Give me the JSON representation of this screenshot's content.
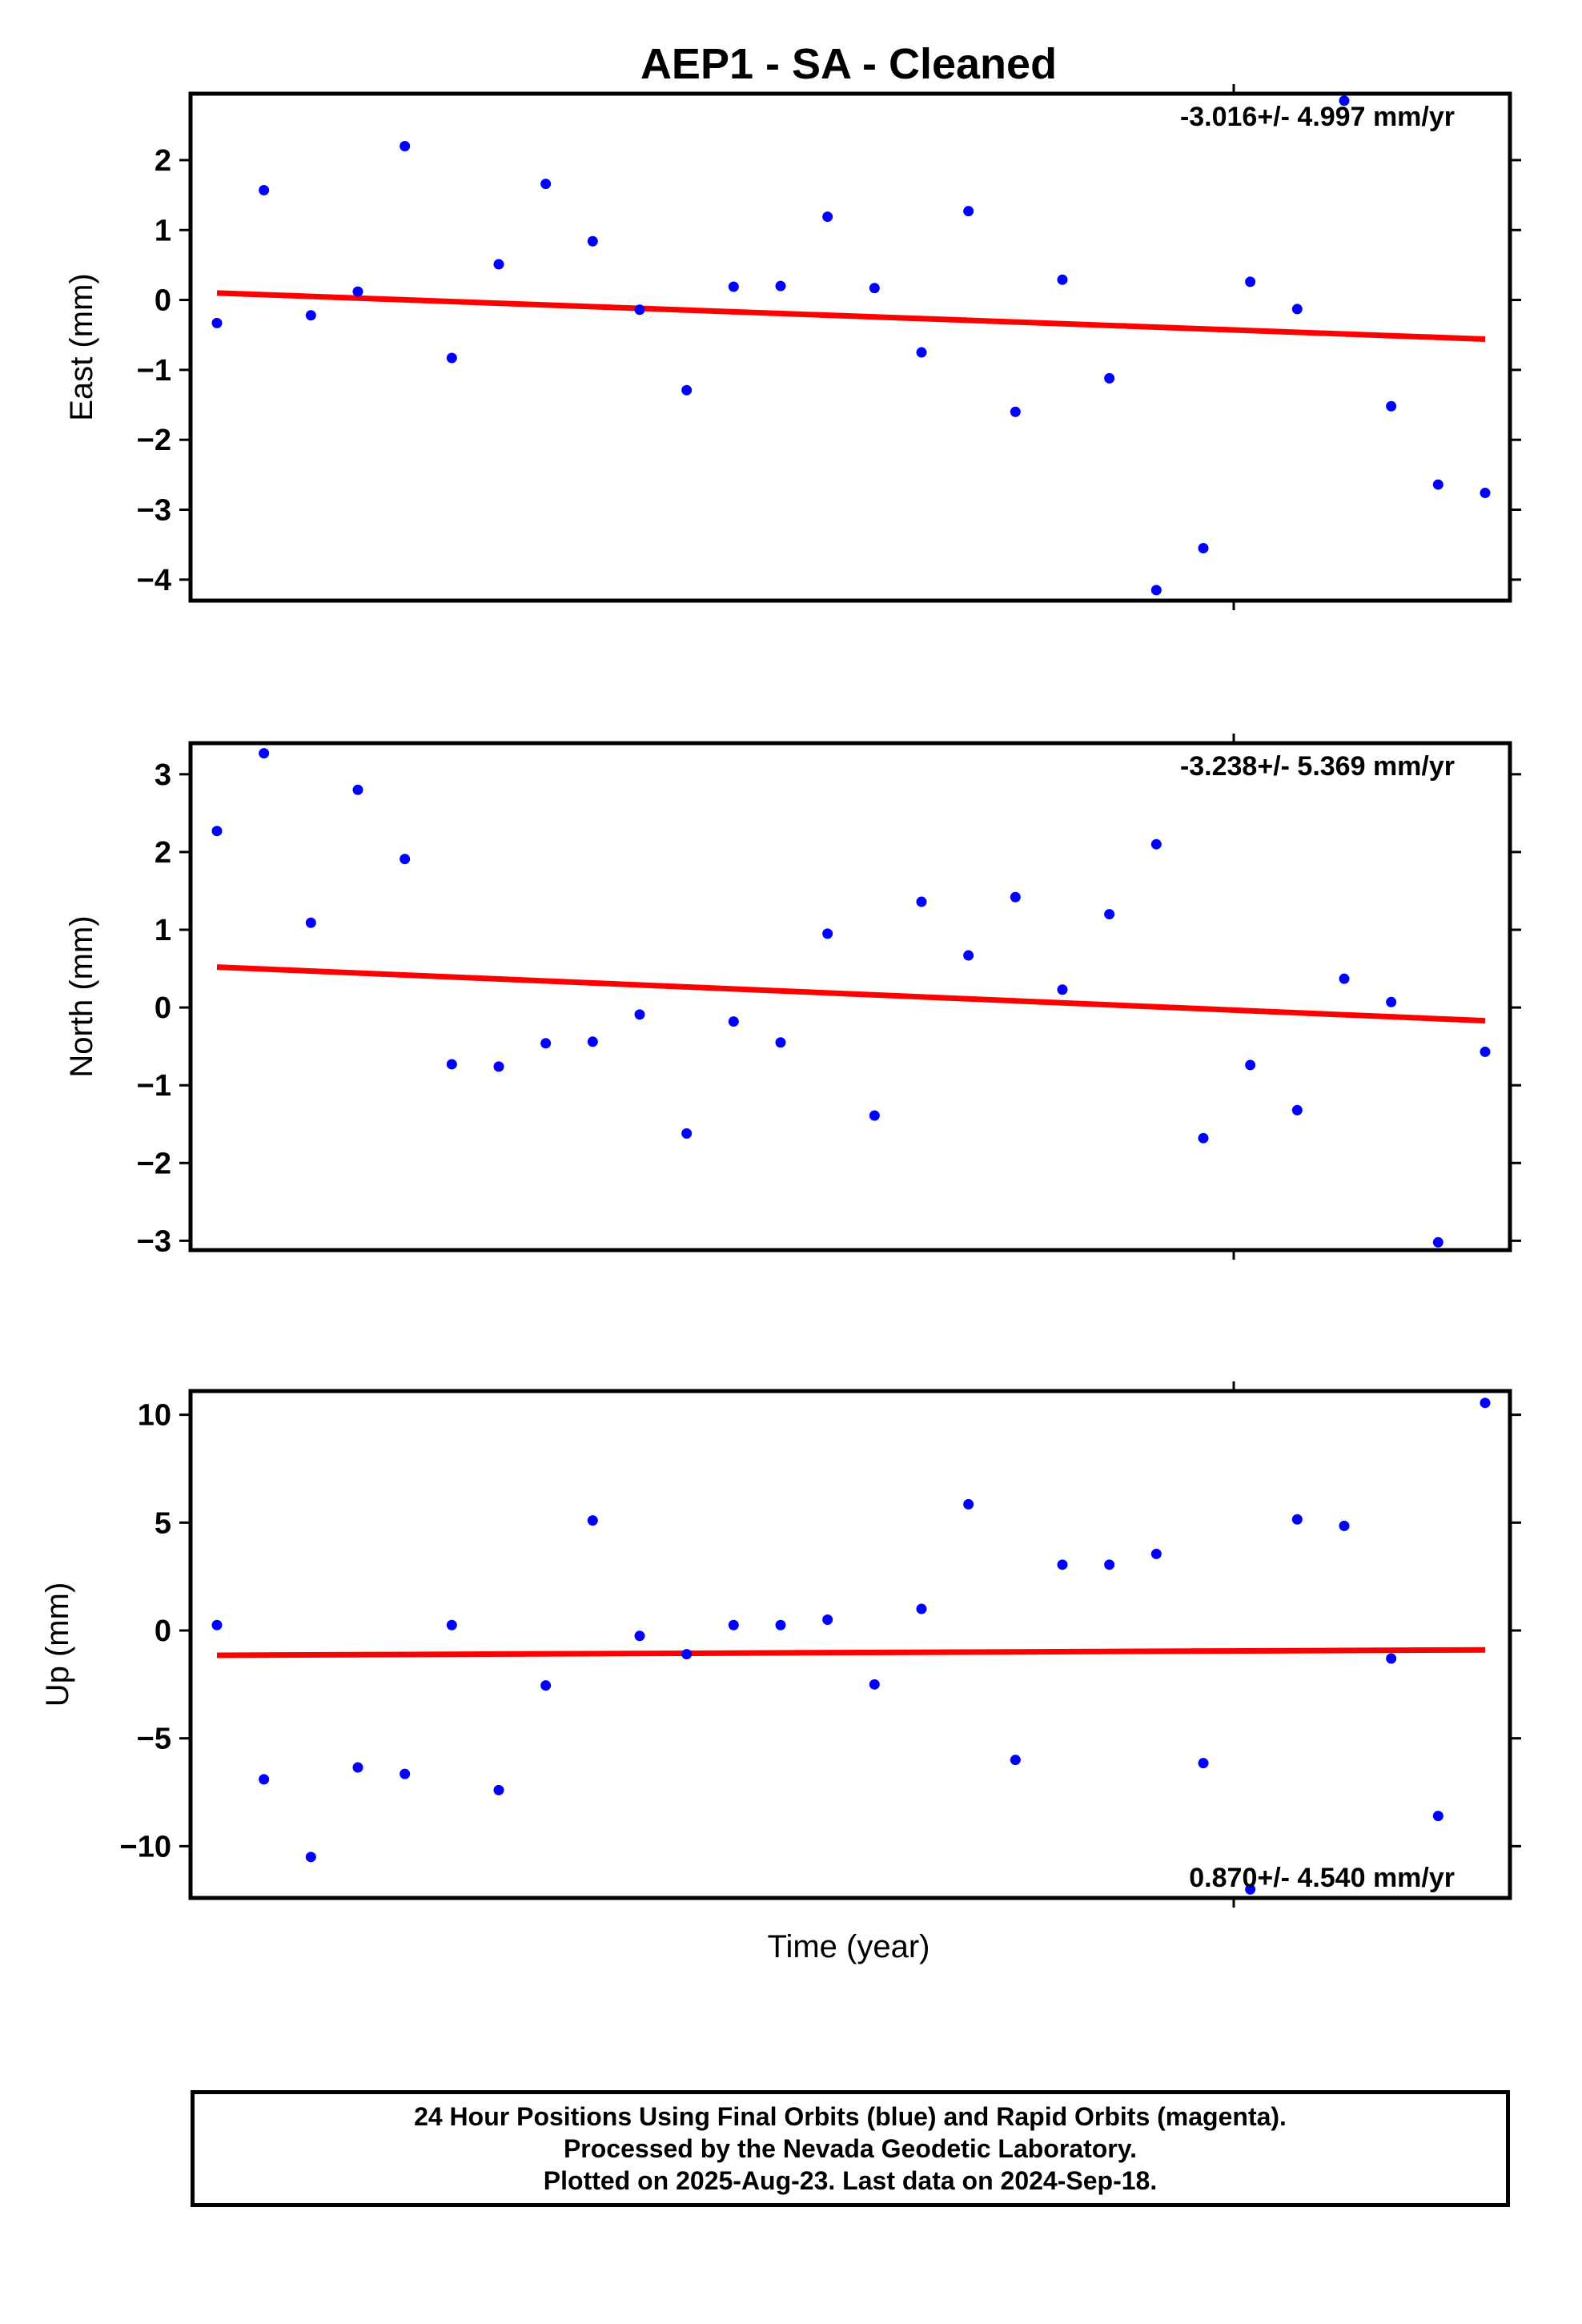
{
  "title": "AEP1  - SA - Cleaned",
  "xlabel": "Time (year)",
  "footer": {
    "line1": "24 Hour Positions Using Final Orbits (blue) and Rapid Orbits (magenta).",
    "line2": "Processed by the Nevada Geodetic Laboratory.",
    "line3": "Plotted on 2025-Aug-23. Last data on 2024-Sep-18."
  },
  "colors": {
    "points": "#0000ff",
    "trend": "#ff0000",
    "frame": "#000000"
  },
  "chart_data": [
    {
      "type": "scatter",
      "name": "east",
      "ylabel": "East (mm)",
      "rate_label": "-3.016+/- 4.997 mm/yr",
      "rate_position": "top-right",
      "ylim": [
        -4.3,
        2.95
      ],
      "yticks": [
        2,
        1,
        0,
        -1,
        -2,
        -3,
        -4
      ],
      "ytick_labels": [
        "2",
        "1",
        "0",
        "−1",
        "−2",
        "−3",
        "−4"
      ],
      "x": [
        0,
        1,
        2,
        3,
        4,
        5,
        6,
        7,
        8,
        9,
        10,
        11,
        12,
        13,
        14,
        15,
        16,
        17,
        18,
        19,
        20,
        21,
        22,
        23,
        24,
        25,
        26,
        27
      ],
      "values": [
        -0.33,
        1.57,
        -0.22,
        0.12,
        2.2,
        -0.83,
        0.51,
        1.66,
        0.84,
        -0.14,
        -1.29,
        0.19,
        0.2,
        1.19,
        0.17,
        -0.75,
        1.27,
        -1.6,
        0.29,
        -1.12,
        -4.15,
        -3.55,
        0.26,
        -0.13,
        2.85,
        -1.52,
        -2.64,
        -2.76
      ],
      "trend": [
        0.1,
        -0.56
      ],
      "grid": false
    },
    {
      "type": "scatter",
      "name": "north",
      "ylabel": "North (mm)",
      "rate_label": "-3.238+/- 5.369 mm/yr",
      "rate_position": "top-right",
      "ylim": [
        -3.12,
        3.4
      ],
      "yticks": [
        3,
        2,
        1,
        0,
        -1,
        -2,
        -3
      ],
      "ytick_labels": [
        "3",
        "2",
        "1",
        "0",
        "−1",
        "−2",
        "−3"
      ],
      "x": [
        0,
        1,
        2,
        3,
        4,
        5,
        6,
        7,
        8,
        9,
        10,
        11,
        12,
        13,
        14,
        15,
        16,
        17,
        18,
        19,
        20,
        21,
        22,
        23,
        24,
        25,
        26,
        27
      ],
      "values": [
        2.27,
        3.27,
        1.09,
        2.8,
        1.91,
        -0.73,
        -0.76,
        -0.46,
        -0.44,
        -0.09,
        -1.62,
        -0.18,
        -0.45,
        0.95,
        -1.39,
        1.36,
        0.67,
        1.42,
        0.23,
        1.2,
        2.1,
        -1.68,
        -0.74,
        -1.32,
        0.37,
        0.07,
        -3.02,
        -0.57
      ],
      "trend": [
        0.52,
        -0.17
      ],
      "grid": false
    },
    {
      "type": "scatter",
      "name": "up",
      "ylabel": "Up (mm)",
      "rate_label": "0.870+/- 4.540 mm/yr",
      "rate_position": "bottom-right",
      "ylim": [
        -12.4,
        11.1
      ],
      "yticks": [
        10,
        5,
        0,
        -5,
        -10
      ],
      "ytick_labels": [
        "10",
        "5",
        "0",
        "−5",
        "−10"
      ],
      "x": [
        0,
        1,
        2,
        3,
        4,
        5,
        6,
        7,
        8,
        9,
        10,
        11,
        12,
        13,
        14,
        15,
        16,
        17,
        18,
        19,
        20,
        21,
        22,
        23,
        24,
        25,
        26,
        27
      ],
      "values": [
        0.25,
        -6.9,
        -10.5,
        -6.35,
        -6.65,
        0.25,
        -7.4,
        -2.55,
        5.1,
        -0.25,
        -1.1,
        0.25,
        0.25,
        0.5,
        -2.5,
        1.0,
        5.85,
        -6.0,
        3.05,
        3.05,
        3.55,
        -6.15,
        -12.0,
        5.15,
        4.85,
        -1.3,
        -8.6,
        10.55
      ],
      "trend": [
        -1.15,
        -0.9
      ],
      "grid": false
    }
  ]
}
